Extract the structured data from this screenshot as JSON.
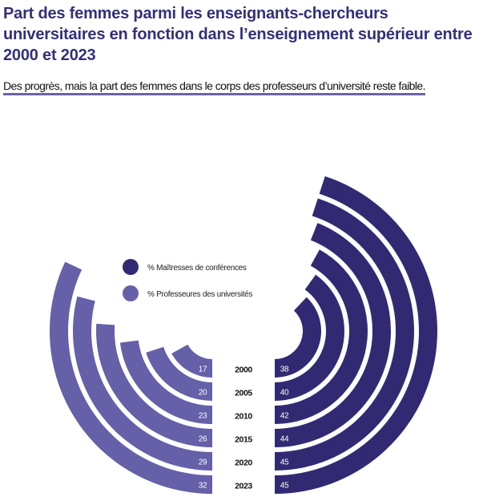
{
  "header": {
    "title": "Part des femmes parmi les enseignants-chercheurs universitaires en fonction dans l’enseignement supérieur entre 2000 et 2023",
    "subtitle": "Des progrès, mais la part des femmes dans le corps des professeurs d’université reste faible."
  },
  "chart_data": {
    "type": "radial-bar",
    "title": "Part des femmes parmi les enseignants-chercheurs universitaires en fonction dans l’enseignement supérieur entre 2000 et 2023",
    "categories": [
      "2000",
      "2005",
      "2010",
      "2015",
      "2020",
      "2023"
    ],
    "series": [
      {
        "name": "% Maîtresses de conférences",
        "color": "#312a73",
        "side": "right",
        "values": [
          38,
          40,
          42,
          44,
          45,
          45
        ]
      },
      {
        "name": "% Professeures des universités",
        "color": "#6560a8",
        "side": "left",
        "values": [
          17,
          20,
          23,
          26,
          29,
          32
        ]
      }
    ],
    "unit": "%",
    "scale_max": 100,
    "legend": "top-left"
  }
}
